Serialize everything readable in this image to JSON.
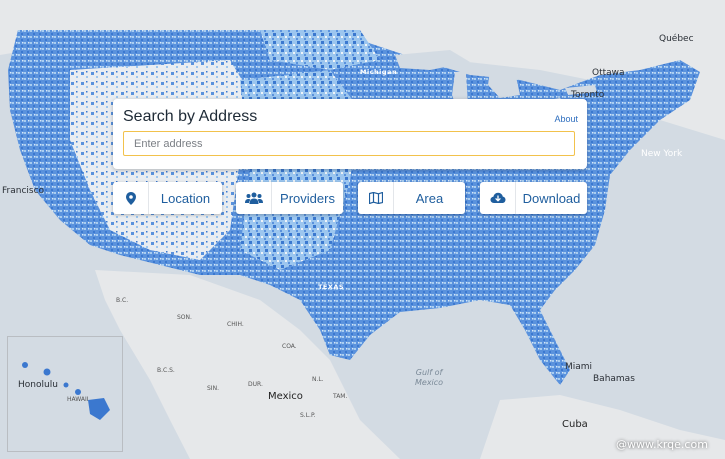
{
  "search": {
    "title": "Search by Address",
    "about": "About",
    "placeholder": "Enter address"
  },
  "buttons": [
    {
      "label": "Location",
      "icon": "map-pin-icon"
    },
    {
      "label": "Providers",
      "icon": "users-icon"
    },
    {
      "label": "Area",
      "icon": "map-icon"
    },
    {
      "label": "Download",
      "icon": "cloud-download-icon"
    }
  ],
  "map_labels": {
    "quebec": "Québec",
    "ottawa": "Ottawa",
    "toronto": "Toronto",
    "new_york": "New York",
    "san_francisco": "Francisco",
    "mexico": "Mexico",
    "gulf": "Gulf of\nMexico",
    "miami": "Miami",
    "bahamas": "Bahamas",
    "cuba": "Cuba",
    "honolulu": "Honolulu",
    "hawaii": "HAWAII",
    "chih": "CHIH.",
    "coa": "COA.",
    "son": "SON.",
    "bc": "B.C.",
    "bcs": "B.C.S.",
    "dur": "DUR.",
    "nl": "N.L.",
    "tam": "TAM.",
    "slp": "S.L.P.",
    "sin": "SIN.",
    "michigan": "Michigan",
    "texas": "TEXAS"
  },
  "watermark": "@www.krqe.com",
  "colors": {
    "coverage_high": "#3b78cf",
    "coverage_mid": "#77aee6",
    "coverage_low": "#cfe3f7",
    "land": "#e4e6e8",
    "water": "#d3dbe3",
    "accent": "#1f5e9e",
    "input_border": "#f2c24c"
  }
}
